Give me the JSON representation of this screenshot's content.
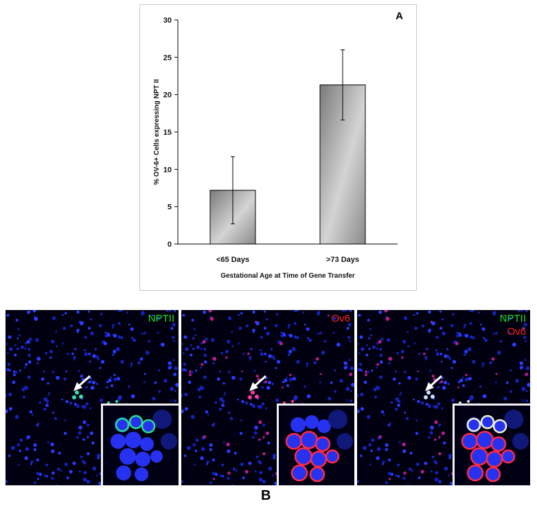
{
  "chart_data": {
    "type": "bar",
    "panel_label": "A",
    "categories": [
      "<65 Days",
      ">73 Days"
    ],
    "values": [
      7.2,
      21.3
    ],
    "error": [
      4.5,
      4.7
    ],
    "ylim": [
      0,
      30
    ],
    "yticks": [
      0,
      5,
      10,
      15,
      20,
      25,
      30
    ],
    "ylabel": "% OV-6+ Cells expressing NPT II",
    "xlabel": "Gestational Age at Time of Gene Transfer",
    "grid": false,
    "colors": {
      "bar_dark": "#7a7a7a",
      "bar_light": "#e6e6e6"
    }
  },
  "micrographs": {
    "panel_label": "B",
    "panels": [
      {
        "labels": [
          {
            "text": "NPTII",
            "color": "#19e619"
          }
        ]
      },
      {
        "labels": [
          {
            "text": "Ov6",
            "color": "#ff2020"
          }
        ]
      },
      {
        "labels": [
          {
            "text": "NPTII",
            "color": "#19e619"
          },
          {
            "text": "Ov6",
            "color": "#ff2020"
          }
        ]
      }
    ]
  }
}
